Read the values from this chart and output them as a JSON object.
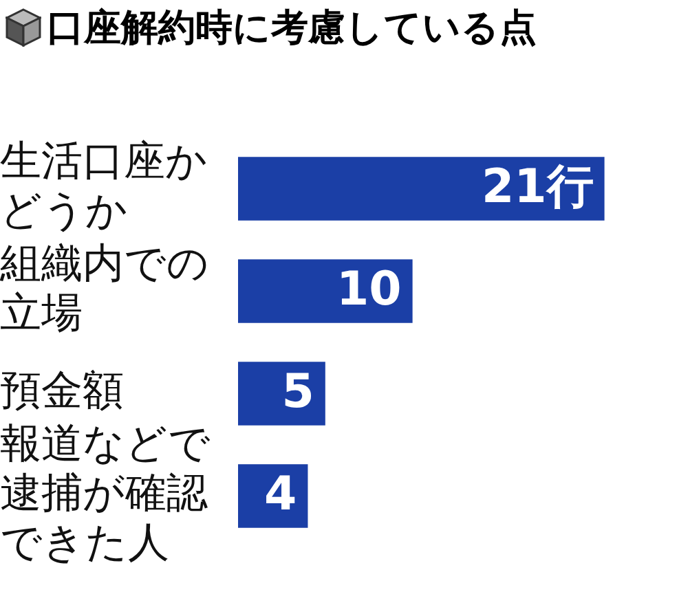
{
  "chart_data": {
    "type": "bar",
    "orientation": "horizontal",
    "title": "口座解約時に考慮している点",
    "categories": [
      "生活口座かどうか",
      "組織内での立場",
      "預金額",
      "報道などで逮捕が確認できた人"
    ],
    "values": [
      21,
      10,
      5,
      4
    ],
    "color": "#1b3fa6",
    "value_labels": [
      "21行",
      "10",
      "5",
      "4"
    ],
    "legend": false
  }
}
